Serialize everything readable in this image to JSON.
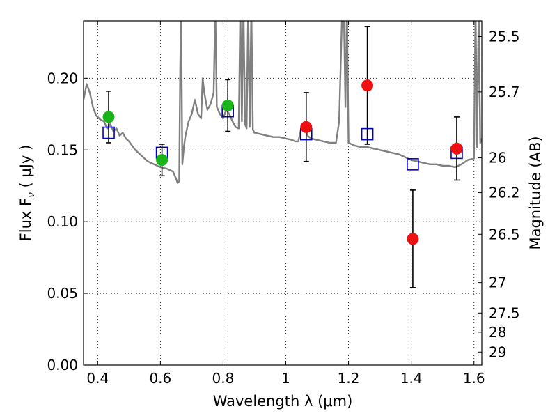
{
  "chart_data": {
    "type": "scatter",
    "xlabel": "Wavelength  λ (μm)",
    "ylabel": "Flux  F",
    "ylabel_sub": "ν",
    "ylabel_unit": "  ( μJy )",
    "ylabel_right": "Magnitude (AB)",
    "xlim": [
      0.355,
      1.625
    ],
    "ylim": [
      0.0,
      0.24
    ],
    "grid": true,
    "x_ticks": [
      {
        "value": 0.4,
        "label": "0.4"
      },
      {
        "value": 0.6,
        "label": "0.6"
      },
      {
        "value": 0.8,
        "label": "0.8"
      },
      {
        "value": 1.0,
        "label": "1"
      },
      {
        "value": 1.2,
        "label": "1.2"
      },
      {
        "value": 1.4,
        "label": "1.4"
      },
      {
        "value": 1.6,
        "label": "1.6"
      }
    ],
    "y_ticks": [
      {
        "value": 0.0,
        "label": "0.00"
      },
      {
        "value": 0.05,
        "label": "0.05"
      },
      {
        "value": 0.1,
        "label": "0.10"
      },
      {
        "value": 0.15,
        "label": "0.15"
      },
      {
        "value": 0.2,
        "label": "0.20"
      }
    ],
    "right_ticks": [
      {
        "label": "25.5",
        "flux": 0.2291
      },
      {
        "label": "25.7",
        "flux": 0.1905
      },
      {
        "label": "26",
        "flux": 0.1445
      },
      {
        "label": "26.2",
        "flux": 0.1202
      },
      {
        "label": "26.5",
        "flux": 0.0912
      },
      {
        "label": "27",
        "flux": 0.0575
      },
      {
        "label": "27.5",
        "flux": 0.0363
      },
      {
        "label": "28",
        "flux": 0.0229
      },
      {
        "label": "29",
        "flux": 0.0091
      }
    ],
    "series": [
      {
        "marker": "line",
        "color": "#808080",
        "x": [
          0.355,
          0.365,
          0.375,
          0.385,
          0.395,
          0.405,
          0.41,
          0.42,
          0.43,
          0.44,
          0.45,
          0.46,
          0.47,
          0.48,
          0.49,
          0.5,
          0.52,
          0.54,
          0.56,
          0.58,
          0.6,
          0.62,
          0.64,
          0.65,
          0.655,
          0.66,
          0.663,
          0.666,
          0.67,
          0.675,
          0.68,
          0.69,
          0.7,
          0.71,
          0.72,
          0.73,
          0.735,
          0.74,
          0.75,
          0.76,
          0.77,
          0.775,
          0.78,
          0.79,
          0.8,
          0.81,
          0.82,
          0.83,
          0.84,
          0.85,
          0.855,
          0.86,
          0.865,
          0.87,
          0.875,
          0.88,
          0.885,
          0.89,
          0.895,
          0.9,
          0.92,
          0.94,
          0.96,
          0.98,
          1.0,
          1.02,
          1.03,
          1.04,
          1.05,
          1.06,
          1.07,
          1.08,
          1.1,
          1.12,
          1.14,
          1.16,
          1.17,
          1.18,
          1.185,
          1.19,
          1.195,
          1.2,
          1.21,
          1.22,
          1.24,
          1.26,
          1.28,
          1.3,
          1.32,
          1.34,
          1.36,
          1.38,
          1.4,
          1.42,
          1.44,
          1.46,
          1.48,
          1.5,
          1.52,
          1.54,
          1.56,
          1.58,
          1.6,
          1.605,
          1.61,
          1.615,
          1.62,
          1.625
        ],
        "y": [
          0.185,
          0.196,
          0.19,
          0.18,
          0.174,
          0.172,
          0.171,
          0.17,
          0.165,
          0.168,
          0.163,
          0.165,
          0.16,
          0.162,
          0.158,
          0.156,
          0.15,
          0.146,
          0.142,
          0.14,
          0.138,
          0.137,
          0.135,
          0.13,
          0.127,
          0.128,
          0.2,
          0.25,
          0.14,
          0.152,
          0.16,
          0.17,
          0.175,
          0.185,
          0.175,
          0.172,
          0.2,
          0.19,
          0.178,
          0.182,
          0.19,
          0.25,
          0.18,
          0.175,
          0.172,
          0.178,
          0.175,
          0.17,
          0.166,
          0.165,
          0.25,
          0.17,
          0.25,
          0.168,
          0.165,
          0.25,
          0.166,
          0.25,
          0.164,
          0.162,
          0.161,
          0.16,
          0.159,
          0.159,
          0.158,
          0.157,
          0.156,
          0.156,
          0.166,
          0.17,
          0.16,
          0.158,
          0.157,
          0.156,
          0.155,
          0.155,
          0.17,
          0.25,
          0.25,
          0.18,
          0.25,
          0.155,
          0.154,
          0.153,
          0.152,
          0.152,
          0.151,
          0.15,
          0.149,
          0.148,
          0.147,
          0.145,
          0.143,
          0.142,
          0.141,
          0.14,
          0.14,
          0.139,
          0.139,
          0.138,
          0.14,
          0.143,
          0.144,
          0.25,
          0.152,
          0.25,
          0.155,
          0.158
        ]
      },
      {
        "marker": "open-square",
        "color": "#0000cc",
        "x": [
          0.435,
          0.605,
          0.815,
          1.065,
          1.26,
          1.405,
          1.545
        ],
        "y": [
          0.162,
          0.148,
          0.177,
          0.161,
          0.161,
          0.14,
          0.148
        ]
      },
      {
        "marker": "circle",
        "color": "#1bb51b",
        "x": [
          0.435,
          0.605,
          0.815
        ],
        "y": [
          0.173,
          0.143,
          0.181
        ],
        "err": [
          0.018,
          0.011,
          0.018
        ]
      },
      {
        "marker": "circle",
        "color": "#ee1111",
        "x": [
          1.065,
          1.26,
          1.405,
          1.545
        ],
        "y": [
          0.166,
          0.195,
          0.088,
          0.151
        ],
        "err": [
          0.024,
          0.041,
          0.034,
          0.022
        ]
      }
    ]
  }
}
